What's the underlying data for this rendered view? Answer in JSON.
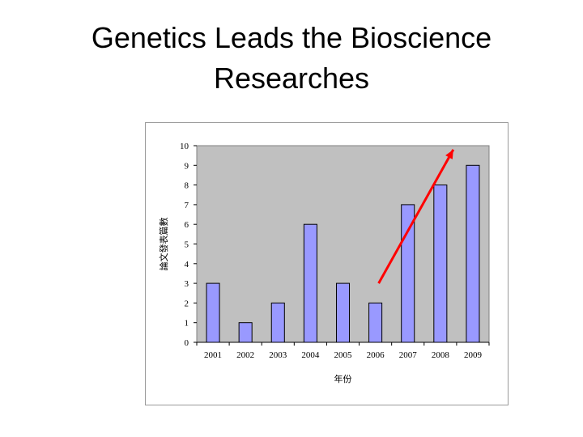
{
  "slide": {
    "title_line1": "Genetics Leads the Bioscience",
    "title_line2": "Researches"
  },
  "chart_data": {
    "type": "bar",
    "categories": [
      "2001",
      "2002",
      "2003",
      "2004",
      "2005",
      "2006",
      "2007",
      "2008",
      "2009"
    ],
    "values": [
      3,
      1,
      2,
      6,
      3,
      2,
      7,
      8,
      9
    ],
    "xlabel": "年份",
    "ylabel": "論文發表篇數",
    "ylim": [
      0,
      10
    ],
    "yticks": [
      0,
      1,
      2,
      3,
      4,
      5,
      6,
      7,
      8,
      9,
      10
    ],
    "grid": false,
    "plot_background": "#c0c0c0",
    "bar_color": "#9999ff",
    "bar_edge_color": "#000000",
    "annotation": {
      "type": "arrow",
      "color": "#ff0000",
      "from": {
        "x": "2006",
        "y": 3
      },
      "to": {
        "x": "2008",
        "y": 9.8
      }
    }
  }
}
